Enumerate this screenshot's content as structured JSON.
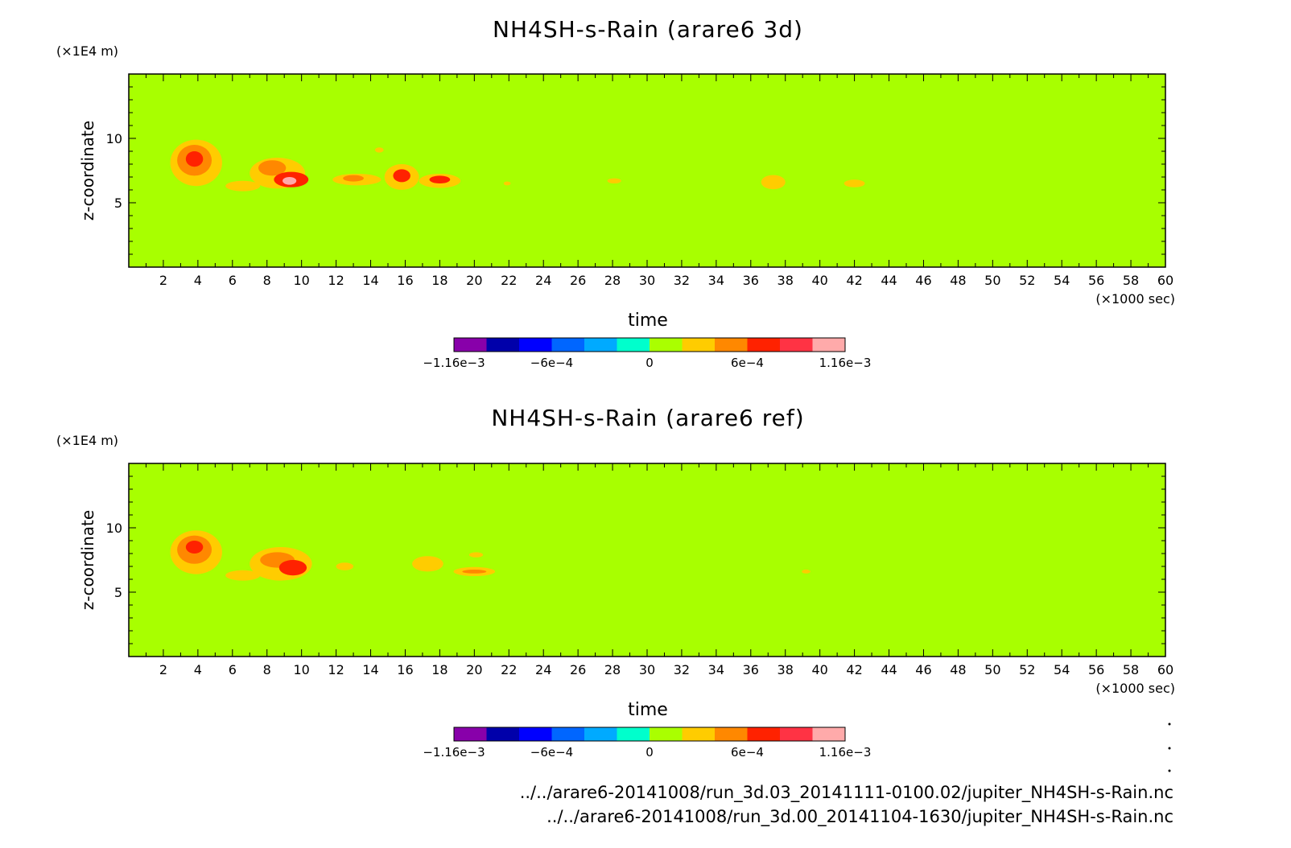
{
  "chart_data": [
    {
      "type": "heatmap",
      "title": "NH4SH-s-Rain (arare6 3d)",
      "xlabel": "time",
      "x_unit": "(×1000 sec)",
      "ylabel": "z-coordinate",
      "y_unit": "(×1E4 m)",
      "xlim": [
        0,
        60
      ],
      "ylim": [
        0,
        15
      ],
      "x_ticks": [
        "2",
        "4",
        "6",
        "8",
        "10",
        "12",
        "14",
        "16",
        "18",
        "20",
        "22",
        "24",
        "26",
        "28",
        "30",
        "32",
        "34",
        "36",
        "38",
        "40",
        "42",
        "44",
        "46",
        "48",
        "50",
        "52",
        "54",
        "56",
        "58",
        "60"
      ],
      "y_ticks": [
        "5",
        "10"
      ],
      "background_color": "#a8ff00",
      "blobs": [
        {
          "x": 3.9,
          "y": 8.1,
          "rx": 1.5,
          "ry": 1.8,
          "level": 4
        },
        {
          "x": 3.8,
          "y": 8.3,
          "rx": 1.0,
          "ry": 1.2,
          "level": 5
        },
        {
          "x": 3.8,
          "y": 8.4,
          "rx": 0.5,
          "ry": 0.6,
          "level": 6
        },
        {
          "x": 6.6,
          "y": 6.3,
          "rx": 1.0,
          "ry": 0.4,
          "level": 4
        },
        {
          "x": 8.6,
          "y": 7.3,
          "rx": 1.6,
          "ry": 1.2,
          "level": 4
        },
        {
          "x": 8.3,
          "y": 7.7,
          "rx": 0.8,
          "ry": 0.6,
          "level": 5
        },
        {
          "x": 9.4,
          "y": 6.8,
          "rx": 1.0,
          "ry": 0.6,
          "level": 6
        },
        {
          "x": 9.3,
          "y": 6.7,
          "rx": 0.4,
          "ry": 0.3,
          "level": 8
        },
        {
          "x": 13.2,
          "y": 6.8,
          "rx": 1.4,
          "ry": 0.45,
          "level": 4
        },
        {
          "x": 13.0,
          "y": 6.9,
          "rx": 0.6,
          "ry": 0.25,
          "level": 5
        },
        {
          "x": 14.5,
          "y": 9.1,
          "rx": 0.25,
          "ry": 0.2,
          "level": 4
        },
        {
          "x": 15.8,
          "y": 7.0,
          "rx": 1.0,
          "ry": 1.0,
          "level": 4
        },
        {
          "x": 15.8,
          "y": 7.1,
          "rx": 0.5,
          "ry": 0.5,
          "level": 6
        },
        {
          "x": 18.0,
          "y": 6.7,
          "rx": 1.2,
          "ry": 0.55,
          "level": 4
        },
        {
          "x": 18.0,
          "y": 6.8,
          "rx": 0.6,
          "ry": 0.3,
          "level": 6
        },
        {
          "x": 21.9,
          "y": 6.5,
          "rx": 0.2,
          "ry": 0.15,
          "level": 4
        },
        {
          "x": 28.1,
          "y": 6.7,
          "rx": 0.4,
          "ry": 0.2,
          "level": 4
        },
        {
          "x": 37.3,
          "y": 6.6,
          "rx": 0.7,
          "ry": 0.55,
          "level": 4
        },
        {
          "x": 42.0,
          "y": 6.5,
          "rx": 0.6,
          "ry": 0.3,
          "level": 4
        }
      ],
      "colorbar": {
        "colors": [
          "#8800aa",
          "#0000aa",
          "#0000ff",
          "#0066ff",
          "#00aaff",
          "#00ffcc",
          "#aaff00",
          "#ffcc00",
          "#ff8800",
          "#ff2200",
          "#ff3344",
          "#ffaaaa"
        ],
        "labels": [
          "−1.16e−3",
          "−6e−4",
          "0",
          "6e−4",
          "1.16e−3"
        ]
      }
    },
    {
      "type": "heatmap",
      "title": "NH4SH-s-Rain (arare6 ref)",
      "xlabel": "time",
      "x_unit": "(×1000 sec)",
      "ylabel": "z-coordinate",
      "y_unit": "(×1E4 m)",
      "xlim": [
        0,
        60
      ],
      "ylim": [
        0,
        15
      ],
      "x_ticks": [
        "2",
        "4",
        "6",
        "8",
        "10",
        "12",
        "14",
        "16",
        "18",
        "20",
        "22",
        "24",
        "26",
        "28",
        "30",
        "32",
        "34",
        "36",
        "38",
        "40",
        "42",
        "44",
        "46",
        "48",
        "50",
        "52",
        "54",
        "56",
        "58",
        "60"
      ],
      "y_ticks": [
        "5",
        "10"
      ],
      "background_color": "#a8ff00",
      "blobs": [
        {
          "x": 3.9,
          "y": 8.1,
          "rx": 1.5,
          "ry": 1.7,
          "level": 4
        },
        {
          "x": 3.8,
          "y": 8.3,
          "rx": 1.0,
          "ry": 1.1,
          "level": 5
        },
        {
          "x": 3.8,
          "y": 8.5,
          "rx": 0.5,
          "ry": 0.5,
          "level": 6
        },
        {
          "x": 6.6,
          "y": 6.3,
          "rx": 1.0,
          "ry": 0.4,
          "level": 4
        },
        {
          "x": 8.8,
          "y": 7.2,
          "rx": 1.8,
          "ry": 1.3,
          "level": 4
        },
        {
          "x": 8.6,
          "y": 7.5,
          "rx": 1.0,
          "ry": 0.6,
          "level": 5
        },
        {
          "x": 9.5,
          "y": 6.9,
          "rx": 0.8,
          "ry": 0.6,
          "level": 6
        },
        {
          "x": 12.5,
          "y": 7.0,
          "rx": 0.5,
          "ry": 0.3,
          "level": 4
        },
        {
          "x": 17.3,
          "y": 7.2,
          "rx": 0.9,
          "ry": 0.6,
          "level": 4
        },
        {
          "x": 20.0,
          "y": 6.6,
          "rx": 1.2,
          "ry": 0.35,
          "level": 4
        },
        {
          "x": 20.0,
          "y": 6.6,
          "rx": 0.7,
          "ry": 0.15,
          "level": 5
        },
        {
          "x": 20.1,
          "y": 7.9,
          "rx": 0.4,
          "ry": 0.2,
          "level": 4
        },
        {
          "x": 39.2,
          "y": 6.6,
          "rx": 0.25,
          "ry": 0.15,
          "level": 4
        }
      ],
      "colorbar": {
        "colors": [
          "#8800aa",
          "#0000aa",
          "#0000ff",
          "#0066ff",
          "#00aaff",
          "#00ffcc",
          "#aaff00",
          "#ffcc00",
          "#ff8800",
          "#ff2200",
          "#ff3344",
          "#ffaaaa"
        ],
        "labels": [
          "−1.16e−3",
          "−6e−4",
          "0",
          "6e−4",
          "1.16e−3"
        ]
      }
    }
  ],
  "footer": {
    "file_1": "../../arare6-20141008/run_3d.03_20141111-0100.02/jupiter_NH4SH-s-Rain.nc",
    "file_2": "../../arare6-20141008/run_3d.00_20141104-1630/jupiter_NH4SH-s-Rain.nc"
  },
  "level_colors": [
    "#ffcc00",
    "#ff8800",
    "#ff2200",
    "#ff3344",
    "#ffaaaa"
  ]
}
